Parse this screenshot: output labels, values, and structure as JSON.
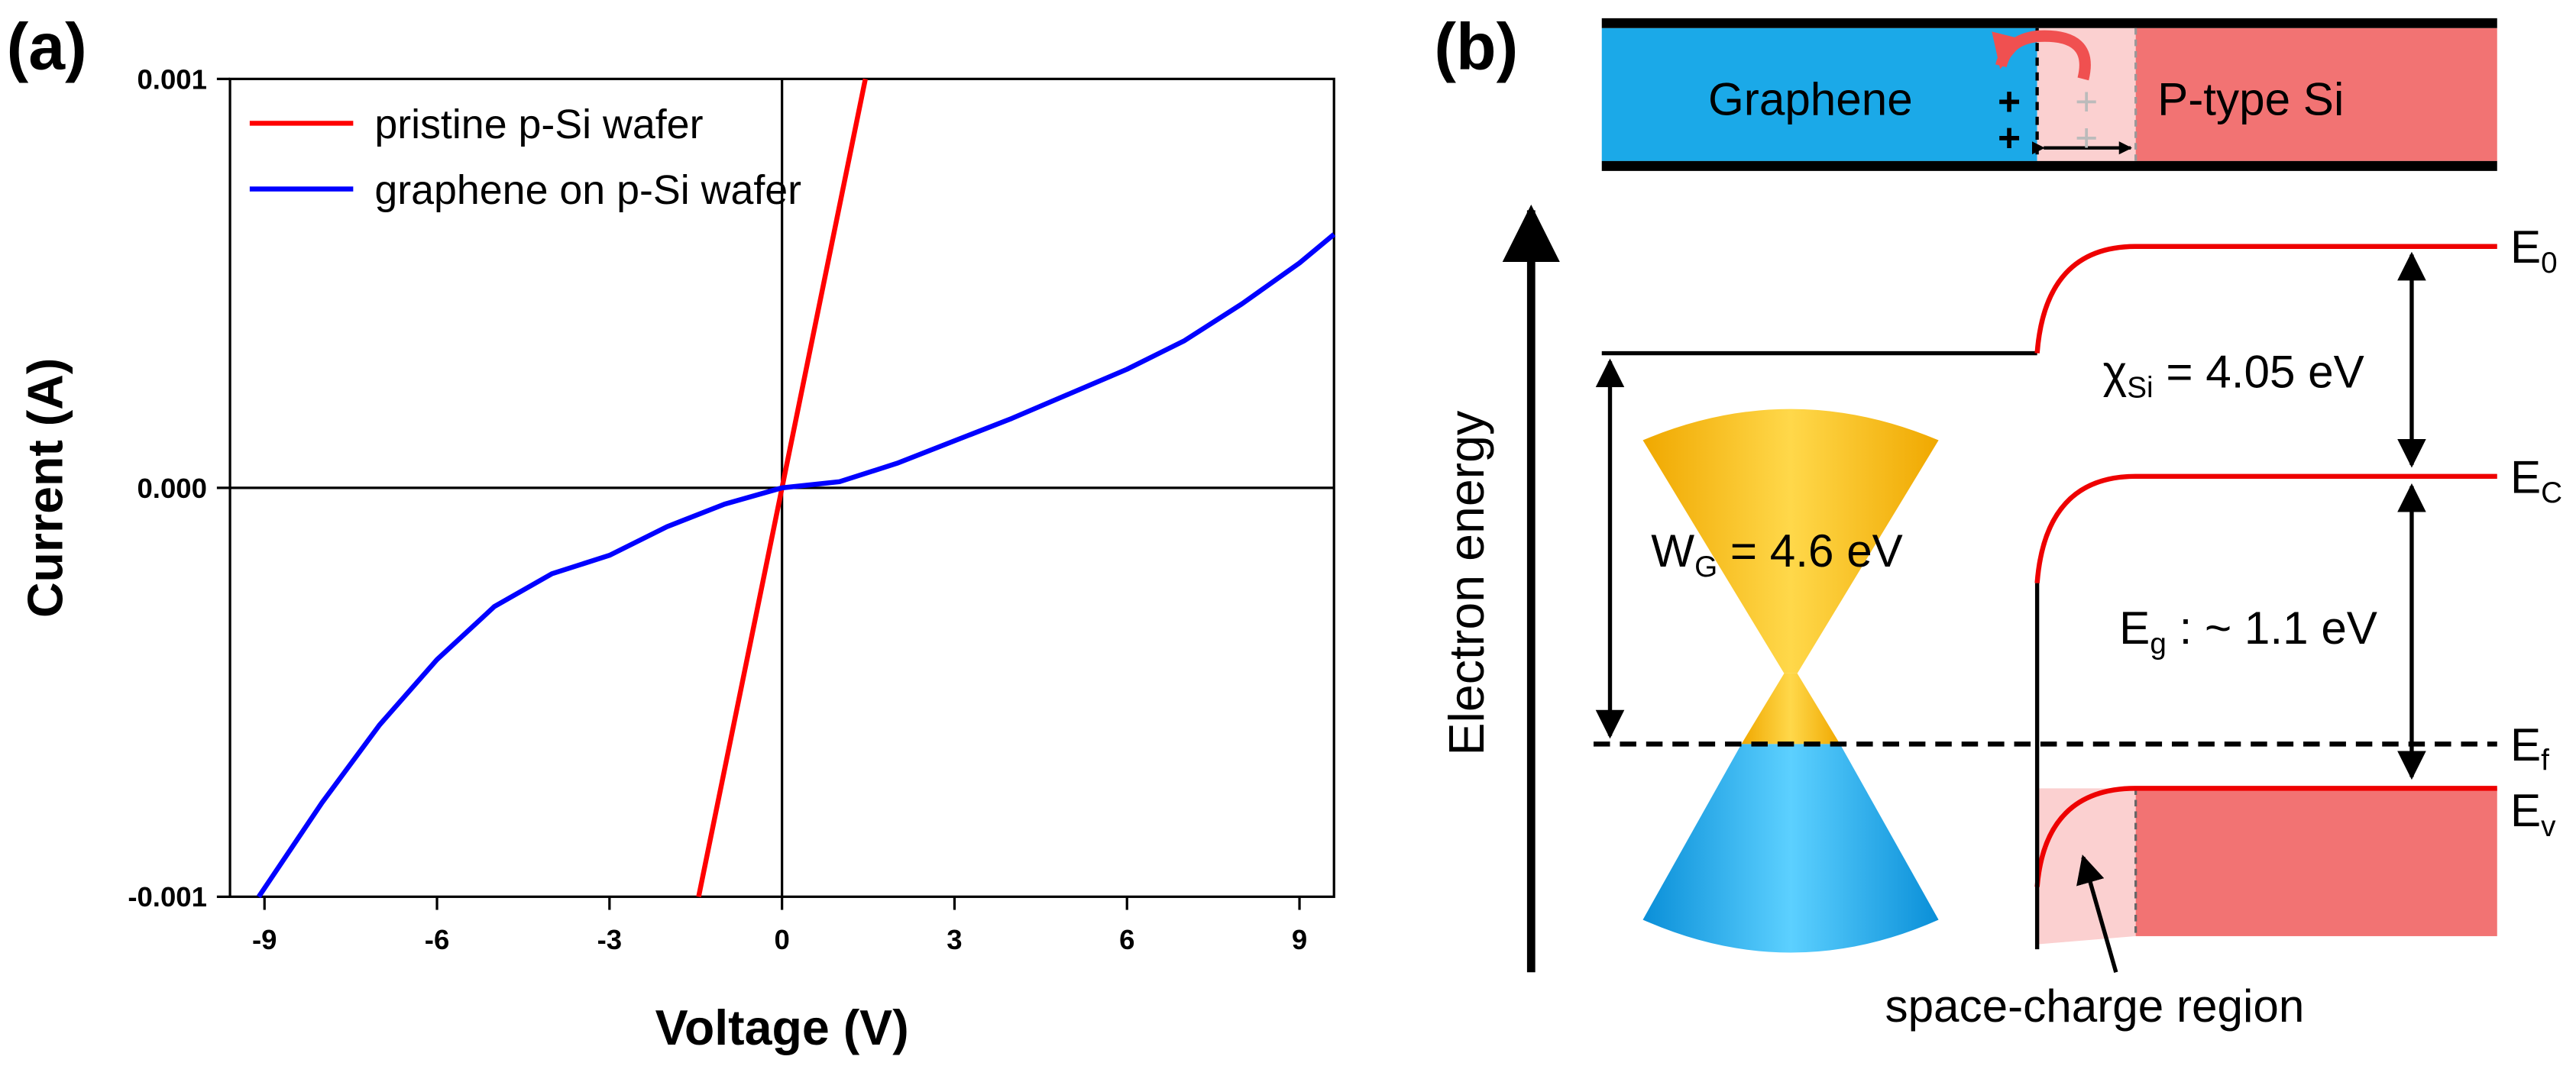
{
  "chart_data": {
    "type": "line",
    "panel_label": "(a)",
    "x_label": "Voltage (V)",
    "y_label": "Current (A)",
    "xlim": [
      -9.6,
      9.6
    ],
    "xticks": [
      -9,
      -6,
      -3,
      0,
      3,
      6,
      9
    ],
    "ylim": [
      -0.001,
      0.001
    ],
    "yticks": [
      -0.001,
      {
        "value": 0,
        "label": "0.000"
      },
      0.001
    ],
    "legend": "upper left",
    "grid": false,
    "series": [
      {
        "name": "pristine p-Si wafer",
        "color": "#ff0000",
        "x": [
          -1.45,
          0,
          1.45
        ],
        "values": [
          -0.001,
          0,
          0.001
        ]
      },
      {
        "name": "graphene on p-Si wafer",
        "color": "#0000ff",
        "x": [
          -9.1,
          -8,
          -7,
          -6,
          -5,
          -4,
          -3,
          -2,
          -1,
          0,
          1,
          2,
          3,
          4,
          5,
          6,
          7,
          8,
          9,
          9.6
        ],
        "values": [
          -0.001,
          -0.00077,
          -0.00058,
          -0.00042,
          -0.00029,
          -0.00021,
          -0.000165,
          -9.5e-05,
          -4e-05,
          0,
          1.5e-05,
          6e-05,
          0.000115,
          0.00017,
          0.00023,
          0.00029,
          0.00036,
          0.00045,
          0.00055,
          0.00062
        ]
      }
    ]
  },
  "diagram": {
    "panel_label": "(b)",
    "graphene": "Graphene",
    "si": "P-type Si",
    "plus_signs": [
      "+",
      "+",
      "+",
      "+"
    ],
    "axis_label": "Electron energy",
    "e0": {
      "symbol": "E",
      "sub": "0"
    },
    "ec": {
      "symbol": "E",
      "sub": "C"
    },
    "ef": {
      "symbol": "E",
      "sub": "f"
    },
    "ev": {
      "symbol": "E",
      "sub": "v"
    },
    "chi": {
      "symbol": "χ",
      "sub": "Si",
      "rest": " = 4.05 eV"
    },
    "wg": {
      "symbol": "W",
      "sub": "G",
      "rest": " = 4.6 eV"
    },
    "eg": {
      "symbol": "E",
      "sub": "g",
      "rest": " : ~ 1.1 eV"
    },
    "region": "space-charge region"
  }
}
